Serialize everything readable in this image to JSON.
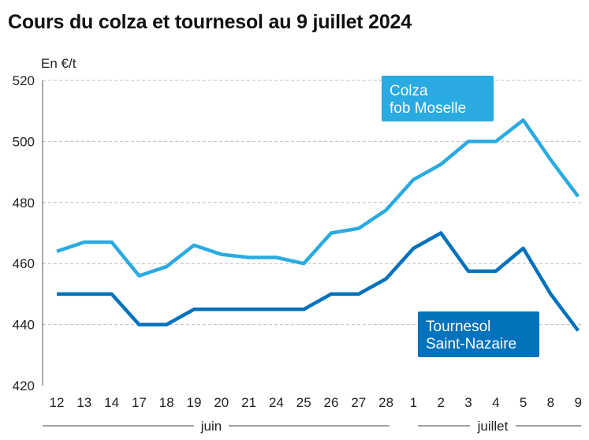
{
  "chart_data": {
    "type": "line",
    "title": "Cours du colza et tournesol au 9 juillet 2024",
    "ylabel": "En €/t",
    "ylim": [
      420,
      520
    ],
    "yticks": [
      420,
      440,
      460,
      480,
      500,
      520
    ],
    "categories": [
      "12",
      "13",
      "14",
      "17",
      "18",
      "19",
      "20",
      "21",
      "24",
      "25",
      "26",
      "27",
      "28",
      "1",
      "2",
      "3",
      "4",
      "5",
      "8",
      "9"
    ],
    "months": [
      {
        "label": "juin",
        "first": 0,
        "last": 12
      },
      {
        "label": "juillet",
        "first": 13,
        "last": 19
      }
    ],
    "grid": "horizontal dashed",
    "series": [
      {
        "name_lines": [
          "Colza",
          "fob Moselle"
        ],
        "color": "#29aae1",
        "values": [
          464,
          467,
          467,
          456,
          459,
          466,
          463,
          462,
          462,
          460,
          470,
          471.5,
          477.5,
          487.5,
          492.5,
          500,
          500,
          507,
          494,
          482
        ]
      },
      {
        "name_lines": [
          "Tournesol",
          "Saint-Nazaire"
        ],
        "color": "#0072bc",
        "values": [
          450,
          450,
          450,
          440,
          440,
          445,
          445,
          445,
          445,
          445,
          450,
          450,
          455,
          465,
          470,
          457.5,
          457.5,
          465,
          450,
          438
        ]
      }
    ]
  }
}
